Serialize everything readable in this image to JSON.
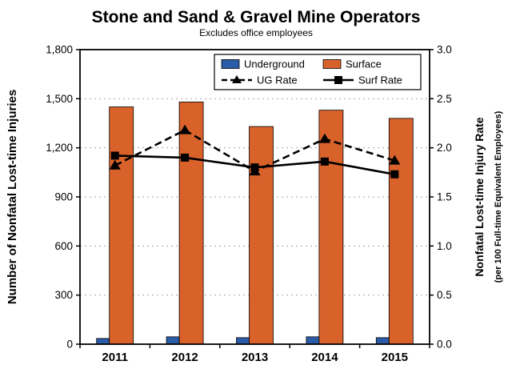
{
  "chart_data": {
    "type": "bar+line",
    "title": "Stone and Sand & Gravel Mine Operators",
    "subtitle": "Excludes office employees",
    "categories": [
      "2011",
      "2012",
      "2013",
      "2014",
      "2015"
    ],
    "left_axis": {
      "label": "Number of Nonfatal Lost-time Injuries",
      "min": 0,
      "max": 1800,
      "step": 300
    },
    "right_axis": {
      "label": "Nonfatal Lost-time Injury Rate",
      "sublabel": "(per 100 Full-time Equivalent Employees)",
      "min": 0,
      "max": 3.0,
      "step": 0.5
    },
    "grid": true,
    "legend": {
      "position": "top-center-inset",
      "entries": [
        "Underground",
        "Surface",
        "UG Rate",
        "Surf Rate"
      ]
    },
    "series": [
      {
        "name": "Underground",
        "type": "bar",
        "axis": "left",
        "color": "#2B5CA8",
        "values": [
          35,
          45,
          40,
          45,
          40
        ]
      },
      {
        "name": "Surface",
        "type": "bar",
        "axis": "left",
        "color": "#D9622B",
        "values": [
          1450,
          1480,
          1330,
          1430,
          1380
        ]
      },
      {
        "name": "UG Rate",
        "type": "line",
        "axis": "right",
        "color": "#000000",
        "style": "dashed",
        "marker": "triangle",
        "values": [
          1.82,
          2.18,
          1.76,
          2.09,
          1.87
        ]
      },
      {
        "name": "Surf Rate",
        "type": "line",
        "axis": "right",
        "color": "#000000",
        "style": "solid",
        "marker": "square",
        "values": [
          1.92,
          1.9,
          1.8,
          1.86,
          1.73
        ]
      }
    ]
  }
}
